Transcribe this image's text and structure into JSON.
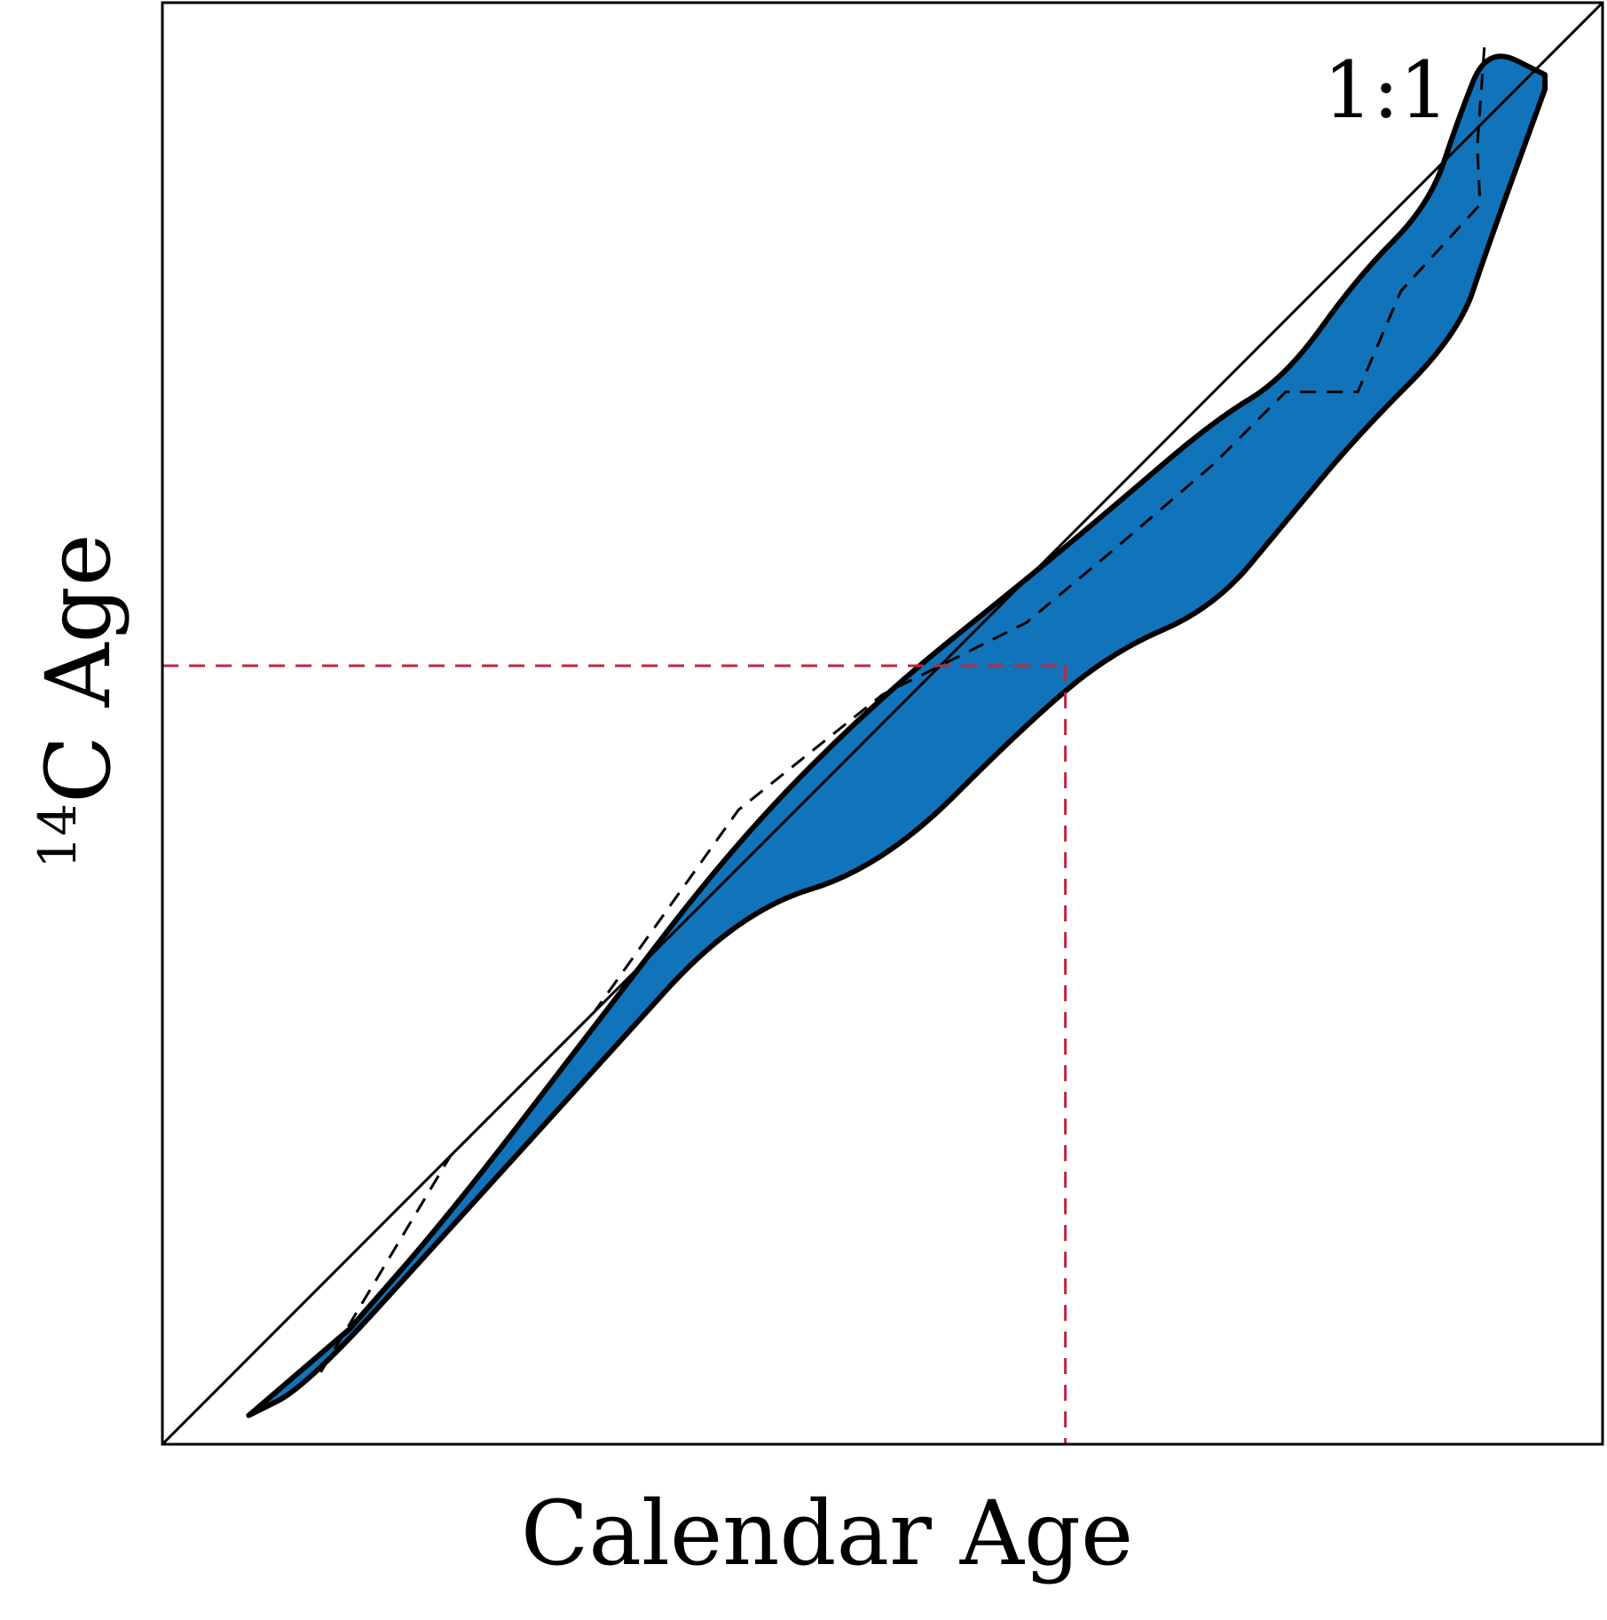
{
  "chart_data": {
    "type": "line",
    "title": "",
    "xlabel": "Calendar Age",
    "ylabel": {
      "superscript": "14",
      "text": "C Age"
    },
    "reference_line_label": "1:1",
    "xlim": [
      0,
      1
    ],
    "ylim": [
      0,
      1
    ],
    "ticks": "none",
    "grid": false,
    "legend": "none",
    "series": [
      {
        "role": "calibration-curve-mean",
        "style": "dashed",
        "x": [
          0.11,
          0.2,
          0.3,
          0.4,
          0.5,
          0.6,
          0.66,
          0.73,
          0.78,
          0.83,
          0.86,
          0.915,
          0.913,
          0.918
        ],
        "y": [
          0.05,
          0.2,
          0.3,
          0.44,
          0.52,
          0.57,
          0.62,
          0.68,
          0.73,
          0.73,
          0.8,
          0.86,
          0.9,
          0.97
        ]
      },
      {
        "role": "calibration-band-upper",
        "x": [
          0.13,
          0.2,
          0.3,
          0.4,
          0.5,
          0.6,
          0.66,
          0.73,
          0.78,
          0.83,
          0.88,
          0.9,
          0.92,
          0.96
        ],
        "y": [
          0.08,
          0.16,
          0.29,
          0.42,
          0.52,
          0.6,
          0.65,
          0.71,
          0.74,
          0.81,
          0.86,
          0.92,
          0.97,
          0.95
        ]
      },
      {
        "role": "calibration-band-lower",
        "x": [
          0.06,
          0.1,
          0.2,
          0.3,
          0.4,
          0.5,
          0.6,
          0.66,
          0.73,
          0.78,
          0.83,
          0.9,
          0.92,
          0.96
        ],
        "y": [
          0.02,
          0.04,
          0.15,
          0.26,
          0.37,
          0.4,
          0.5,
          0.55,
          0.58,
          0.64,
          0.7,
          0.77,
          0.83,
          0.94
        ]
      },
      {
        "role": "one-to-one-line",
        "x": [
          0,
          1
        ],
        "y": [
          0,
          1
        ]
      }
    ],
    "annotations": [
      {
        "role": "reference-crosshair",
        "x": 0.627,
        "y": 0.54,
        "color": "#c0283d",
        "style": "dashed"
      }
    ],
    "colors": {
      "band_fill": "#1174bb",
      "outline": "#000000",
      "crosshair": "#c0283d"
    }
  }
}
